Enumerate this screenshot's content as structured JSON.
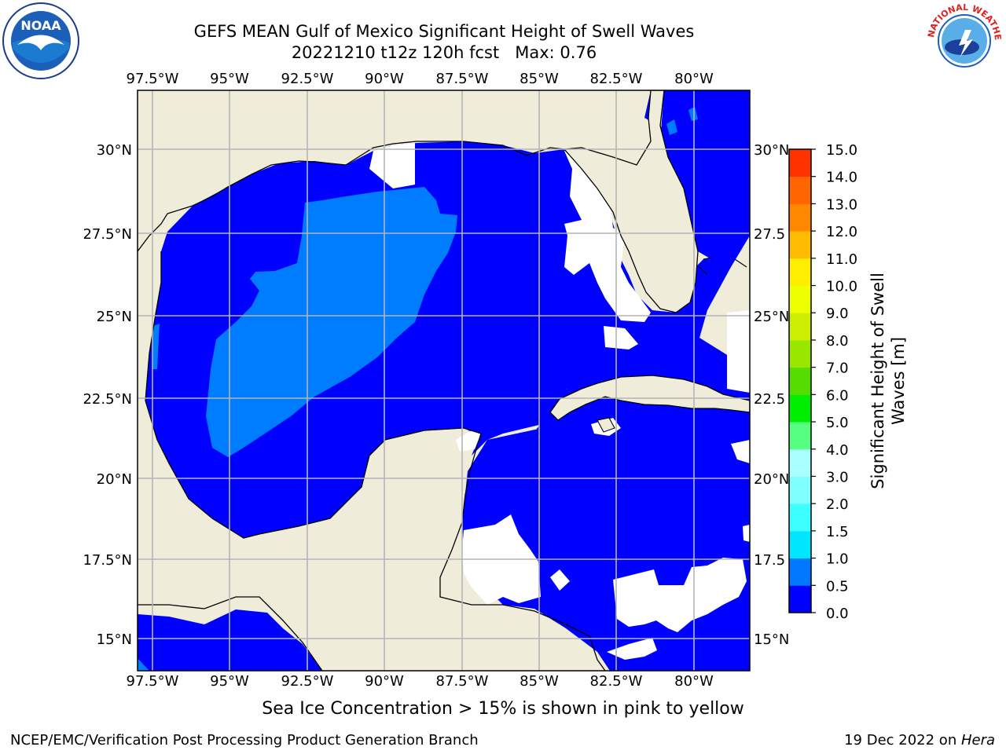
{
  "header": {
    "title": "GEFS MEAN Gulf of Mexico Significant Height of Swell Waves",
    "subtitle_date": "20221210 t12z 120h fcst",
    "subtitle_max": "Max: 0.76"
  },
  "map": {
    "lon_labels": [
      "97.5°W",
      "95°W",
      "92.5°W",
      "90°W",
      "87.5°W",
      "85°W",
      "82.5°W",
      "80°W"
    ],
    "lat_labels_left": [
      "30°N",
      "27.5°N",
      "25°N",
      "22.5°N",
      "20°N",
      "17.5°N",
      "15°N"
    ],
    "lat_labels_right": [
      "30°N",
      "27.5",
      "25°N",
      "22.5",
      "20°N",
      "17.5",
      "15°N"
    ],
    "colors": {
      "land": "#efedda",
      "water_low": "#0000fe",
      "water_mid": "#007cff",
      "no_data": "#ffffff",
      "grid": "#b4b4b4"
    }
  },
  "colorbar": {
    "label_line1": "Significant Height of Swell",
    "label_line2": "Waves [m]",
    "ticks": [
      "0.0",
      "0.5",
      "1.0",
      "1.5",
      "2.0",
      "3.0",
      "4.0",
      "5.0",
      "6.0",
      "7.0",
      "8.0",
      "9.0",
      "10.0",
      "11.0",
      "12.0",
      "13.0",
      "14.0",
      "15.0"
    ],
    "colors": [
      "#0000ff",
      "#0078ff",
      "#00e6ff",
      "#3cffff",
      "#80ffff",
      "#aaffff",
      "#55ff80",
      "#00ee00",
      "#55dd00",
      "#99e600",
      "#ccee00",
      "#eeff00",
      "#ffee00",
      "#ffbb00",
      "#ff8800",
      "#ff6600",
      "#ff3300",
      "#ff0000"
    ]
  },
  "note": "Sea Ice Concentration > 15% is shown in pink to yellow",
  "footer": {
    "left": "NCEP/EMC/Verification Post Processing Product Generation Branch",
    "date": "19 Dec 2022 on ",
    "host": "Hera"
  },
  "logos": {
    "noaa_text": "NOAA",
    "nws_text": "NATIONAL WEATHER SERVICE"
  }
}
